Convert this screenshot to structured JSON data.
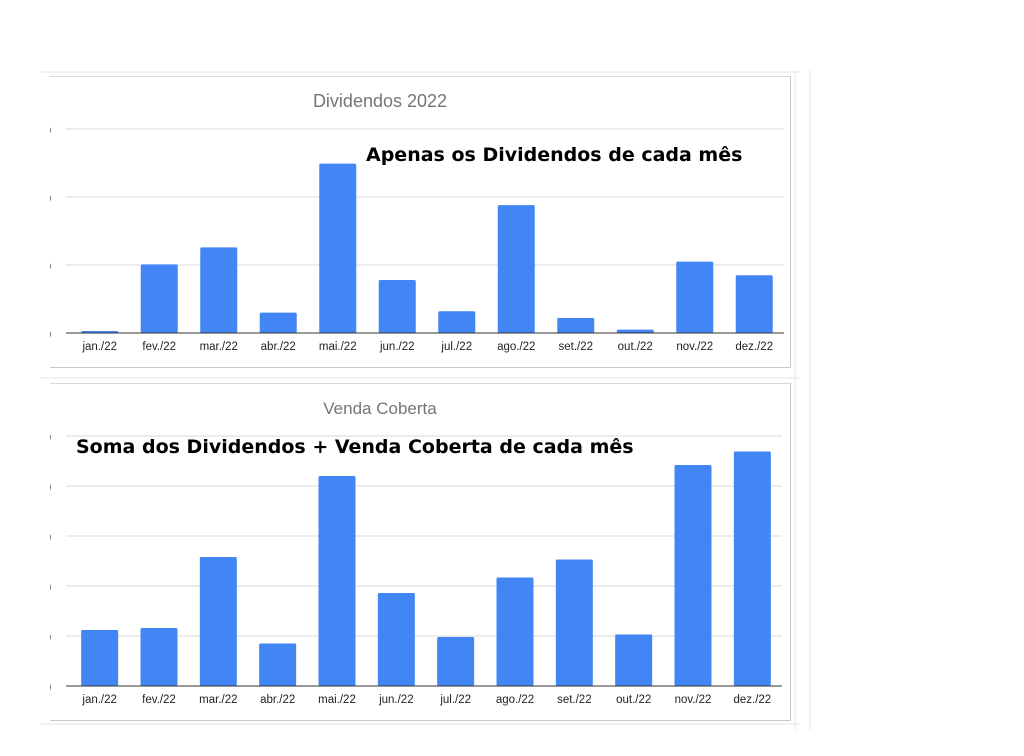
{
  "colors": {
    "bar": "#4285f4",
    "grid": "#d9d9d9",
    "axis": "#333333",
    "title": "#757575"
  },
  "annotations": {
    "top": "Apenas os Dividendos de cada mês",
    "bottom": "Soma dos Dividendos + Venda Coberta de cada mês"
  },
  "chart_data": [
    {
      "type": "bar",
      "title": "Dividendos 2022",
      "categories": [
        "jan./22",
        "fev./22",
        "mar./22",
        "abr./22",
        "mai./22",
        "jun./22",
        "jul./22",
        "ago./22",
        "set./22",
        "out./22",
        "nov./22",
        "dez./22"
      ],
      "values": [
        0.03,
        1.01,
        1.26,
        0.3,
        2.49,
        0.78,
        0.32,
        1.88,
        0.22,
        0.05,
        1.05,
        0.85
      ],
      "ylim": [
        0,
        3
      ],
      "y_ticks_visible": false,
      "grid": true,
      "xlabel": "",
      "ylabel": ""
    },
    {
      "type": "bar",
      "title": "Venda Coberta",
      "categories": [
        "jan./22",
        "fev./22",
        "mar./22",
        "abr./22",
        "mai./22",
        "jun./22",
        "jul./22",
        "ago./22",
        "set./22",
        "out./22",
        "nov./22",
        "dez./22"
      ],
      "values": [
        1.12,
        1.16,
        2.58,
        0.85,
        4.2,
        1.86,
        0.98,
        2.17,
        2.53,
        1.03,
        4.42,
        4.69
      ],
      "ylim": [
        0,
        5
      ],
      "y_ticks_visible": false,
      "grid": true,
      "xlabel": "",
      "ylabel": ""
    }
  ]
}
